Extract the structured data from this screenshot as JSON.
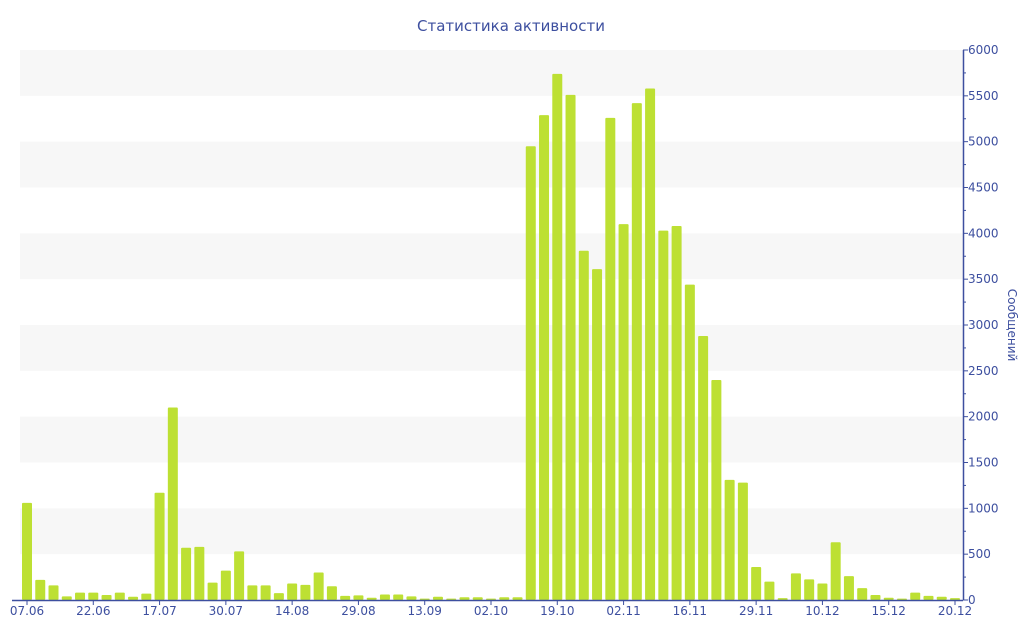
{
  "chart_data": {
    "type": "bar",
    "title": "Статистика активности",
    "xlabel": "",
    "ylabel": "Сообщений",
    "ylim": [
      0,
      6000
    ],
    "yticks": [
      0,
      500,
      1000,
      1500,
      2000,
      2500,
      3000,
      3500,
      4000,
      4500,
      5000,
      5500,
      6000
    ],
    "y_axis_position": "right",
    "grid": "alternating horizontal bands",
    "bar_color": "#bde033",
    "axis_color": "#3d4f9f",
    "band_color": "#f7f7f7",
    "x_tick_labels": [
      "07.06",
      "22.06",
      "17.07",
      "30.07",
      "14.08",
      "29.08",
      "13.09",
      "02.10",
      "19.10",
      "02.11",
      "16.11",
      "29.11",
      "10.12",
      "15.12",
      "20.12"
    ],
    "x_tick_every": 5,
    "values": [
      1060,
      220,
      160,
      40,
      80,
      80,
      55,
      80,
      35,
      70,
      1170,
      2100,
      570,
      580,
      190,
      320,
      530,
      160,
      160,
      75,
      180,
      165,
      300,
      150,
      45,
      50,
      25,
      60,
      60,
      40,
      15,
      35,
      15,
      30,
      30,
      15,
      30,
      30,
      4950,
      5290,
      5740,
      5510,
      3810,
      3610,
      5260,
      4100,
      5420,
      5580,
      4030,
      4080,
      3440,
      2880,
      2400,
      1310,
      1280,
      360,
      200,
      20,
      290,
      225,
      180,
      630,
      260,
      130,
      55,
      25,
      15,
      80,
      45,
      35,
      20
    ]
  }
}
